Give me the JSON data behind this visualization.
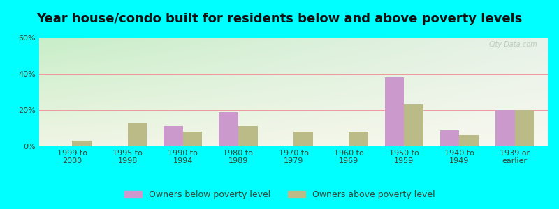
{
  "title": "Year house/condo built for residents below and above poverty levels",
  "categories": [
    "1999 to\n2000",
    "1995 to\n1998",
    "1990 to\n1994",
    "1980 to\n1989",
    "1970 to\n1979",
    "1960 to\n1969",
    "1950 to\n1959",
    "1940 to\n1949",
    "1939 or\nearlier"
  ],
  "below_poverty": [
    0,
    0,
    11,
    19,
    0,
    0,
    38,
    9,
    20
  ],
  "above_poverty": [
    3,
    13,
    8,
    11,
    8,
    8,
    23,
    6,
    20
  ],
  "below_color": "#cc99cc",
  "above_color": "#bbbb88",
  "ylim": [
    0,
    60
  ],
  "yticks": [
    0,
    20,
    40,
    60
  ],
  "ytick_labels": [
    "0%",
    "20%",
    "40%",
    "60%"
  ],
  "grid_color": "#ee9999",
  "bg_color_topleft": "#c8eec8",
  "bg_color_topright": "#e8f0e8",
  "bg_color_bottom": "#f0f0e0",
  "outer_bg": "#00ffff",
  "legend_below": "Owners below poverty level",
  "legend_above": "Owners above poverty level",
  "bar_width": 0.35,
  "title_fontsize": 13,
  "tick_fontsize": 8,
  "legend_fontsize": 9,
  "tick_color": "#556655",
  "label_color": "#334433",
  "watermark": "City-Data.com"
}
